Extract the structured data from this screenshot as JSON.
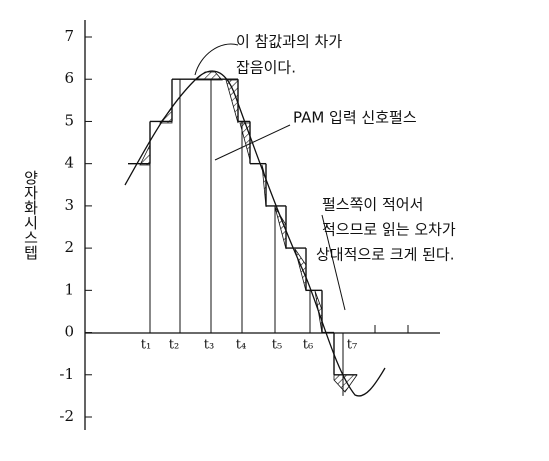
{
  "chart_data": {
    "type": "step",
    "y_label": "양자화시스텝",
    "ylim": [
      -2,
      7
    ],
    "yticks": [
      -2,
      -1,
      0,
      1,
      2,
      3,
      4,
      5,
      6,
      7
    ],
    "levels": [
      4,
      5,
      6,
      5,
      4,
      3,
      2,
      1,
      0,
      -1
    ],
    "sample_labels": [
      "t₁",
      "t₂",
      "t₃",
      "t₄",
      "t₅",
      "t₆",
      "t₇"
    ],
    "annotations": {
      "noise": [
        "이 참값과의 차가",
        "잡음이다."
      ],
      "signal": "PAM 입력 신호펄스",
      "error": [
        "펄스쪽이 적어서",
        "적으므로 읽는 오차가",
        "상대적으로 크게 된다."
      ]
    }
  }
}
